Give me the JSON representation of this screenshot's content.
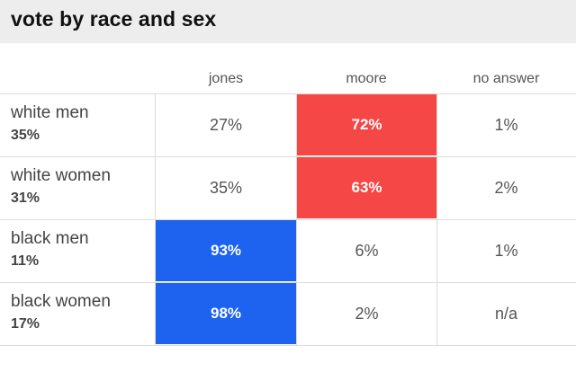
{
  "title": "vote by race and sex",
  "colors": {
    "jones": "#1d63f0",
    "moore": "#f54745"
  },
  "columns": [
    "jones",
    "moore",
    "no answer"
  ],
  "rows": [
    {
      "group": "white men",
      "share": "35%",
      "values": [
        "27%",
        "72%",
        "1%"
      ],
      "winner": "moore"
    },
    {
      "group": "white women",
      "share": "31%",
      "values": [
        "35%",
        "63%",
        "2%"
      ],
      "winner": "moore"
    },
    {
      "group": "black men",
      "share": "11%",
      "values": [
        "93%",
        "6%",
        "1%"
      ],
      "winner": "jones"
    },
    {
      "group": "black women",
      "share": "17%",
      "values": [
        "98%",
        "2%",
        "n/a"
      ],
      "winner": "jones"
    }
  ]
}
